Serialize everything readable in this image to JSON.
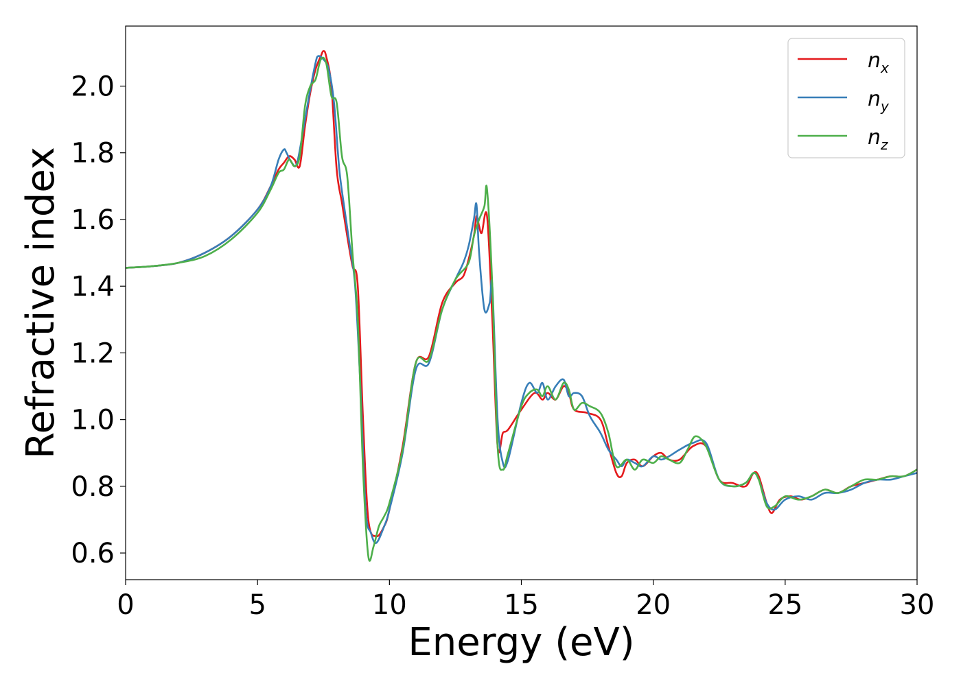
{
  "chart_data": {
    "type": "line",
    "title": "",
    "xlabel": "Energy (eV)",
    "ylabel": "Refractive index",
    "xlim": [
      0,
      30
    ],
    "ylim": [
      0.52,
      2.18
    ],
    "xticks": [
      "0",
      "5",
      "10",
      "15",
      "20",
      "25",
      "30"
    ],
    "yticks": [
      "0.6",
      "0.8",
      "1.0",
      "1.2",
      "1.4",
      "1.6",
      "1.8",
      "2.0"
    ],
    "grid": false,
    "legend_position": "top-right",
    "series": [
      {
        "name": "n_x",
        "legend_base": "n",
        "legend_sub": "x",
        "color": "#e41a1c",
        "x": [
          0,
          1,
          2,
          3,
          4,
          5,
          5.5,
          5.8,
          6.0,
          6.2,
          6.4,
          6.6,
          6.8,
          7.0,
          7.2,
          7.4,
          7.5,
          7.6,
          7.8,
          8.0,
          8.2,
          8.4,
          8.6,
          8.8,
          9.0,
          9.2,
          9.5,
          9.8,
          10.0,
          10.5,
          11.0,
          11.5,
          12.0,
          12.5,
          12.8,
          13.0,
          13.2,
          13.3,
          13.4,
          13.5,
          13.7,
          13.9,
          14.1,
          14.3,
          14.5,
          15.0,
          15.5,
          15.8,
          16.0,
          16.3,
          16.6,
          16.8,
          17.0,
          17.5,
          18.0,
          18.3,
          18.6,
          18.8,
          19.0,
          19.3,
          19.6,
          20.0,
          20.3,
          20.6,
          21.0,
          21.5,
          22.0,
          22.5,
          23.0,
          23.5,
          23.8,
          24.0,
          24.3,
          24.5,
          24.8,
          25.2,
          25.6,
          26.0,
          26.5,
          27.0,
          27.5,
          28.0,
          28.5,
          29.0,
          29.5,
          30.0
        ],
        "y": [
          1.455,
          1.46,
          1.47,
          1.5,
          1.55,
          1.63,
          1.7,
          1.75,
          1.77,
          1.79,
          1.78,
          1.76,
          1.88,
          1.98,
          2.05,
          2.09,
          2.105,
          2.09,
          2.0,
          1.75,
          1.65,
          1.55,
          1.46,
          1.4,
          1.0,
          0.7,
          0.65,
          0.68,
          0.73,
          0.92,
          1.17,
          1.19,
          1.35,
          1.41,
          1.43,
          1.48,
          1.55,
          1.61,
          1.58,
          1.56,
          1.61,
          1.3,
          0.92,
          0.96,
          0.97,
          1.03,
          1.08,
          1.06,
          1.08,
          1.06,
          1.1,
          1.08,
          1.03,
          1.02,
          1.0,
          0.92,
          0.84,
          0.83,
          0.87,
          0.88,
          0.86,
          0.89,
          0.9,
          0.88,
          0.88,
          0.92,
          0.92,
          0.82,
          0.81,
          0.8,
          0.84,
          0.83,
          0.75,
          0.72,
          0.76,
          0.77,
          0.76,
          0.77,
          0.79,
          0.78,
          0.8,
          0.81,
          0.82,
          0.83,
          0.83,
          0.85
        ]
      },
      {
        "name": "n_y",
        "legend_base": "n",
        "legend_sub": "y",
        "color": "#377eb8",
        "x": [
          0,
          1,
          2,
          3,
          4,
          5,
          5.5,
          5.8,
          6.0,
          6.1,
          6.3,
          6.5,
          6.8,
          7.0,
          7.2,
          7.3,
          7.5,
          7.7,
          7.9,
          8.1,
          8.3,
          8.5,
          8.7,
          8.9,
          9.1,
          9.3,
          9.5,
          9.8,
          10.0,
          10.5,
          11.0,
          11.5,
          12.0,
          12.5,
          12.8,
          13.0,
          13.2,
          13.3,
          13.4,
          13.6,
          13.8,
          13.9,
          14.1,
          14.3,
          14.5,
          15.0,
          15.3,
          15.6,
          15.8,
          16.0,
          16.3,
          16.6,
          16.8,
          17.0,
          17.3,
          17.6,
          18.0,
          18.3,
          18.6,
          18.8,
          19.0,
          19.3,
          19.6,
          20.0,
          20.3,
          20.6,
          21.0,
          21.5,
          22.0,
          22.5,
          23.0,
          23.5,
          23.8,
          24.0,
          24.3,
          24.6,
          25.0,
          25.5,
          26.0,
          26.5,
          27.0,
          27.5,
          28.0,
          28.5,
          29.0,
          29.5,
          30.0
        ],
        "y": [
          1.455,
          1.46,
          1.47,
          1.5,
          1.55,
          1.63,
          1.7,
          1.78,
          1.81,
          1.8,
          1.77,
          1.77,
          1.9,
          1.99,
          2.07,
          2.09,
          2.08,
          2.05,
          1.95,
          1.75,
          1.63,
          1.52,
          1.4,
          1.1,
          0.73,
          0.66,
          0.63,
          0.68,
          0.73,
          0.9,
          1.15,
          1.17,
          1.33,
          1.42,
          1.47,
          1.52,
          1.6,
          1.645,
          1.5,
          1.33,
          1.35,
          1.4,
          1.0,
          0.87,
          0.88,
          1.05,
          1.11,
          1.08,
          1.11,
          1.06,
          1.1,
          1.12,
          1.07,
          1.08,
          1.07,
          1.01,
          0.96,
          0.91,
          0.88,
          0.86,
          0.88,
          0.87,
          0.86,
          0.89,
          0.88,
          0.89,
          0.91,
          0.93,
          0.93,
          0.82,
          0.8,
          0.81,
          0.84,
          0.82,
          0.75,
          0.73,
          0.76,
          0.77,
          0.76,
          0.78,
          0.78,
          0.79,
          0.81,
          0.82,
          0.82,
          0.83,
          0.84
        ]
      },
      {
        "name": "n_z",
        "legend_base": "n",
        "legend_sub": "z",
        "color": "#4daf4a",
        "x": [
          0,
          1,
          2,
          3,
          4,
          5,
          5.5,
          5.8,
          6.0,
          6.2,
          6.4,
          6.6,
          6.8,
          7.0,
          7.2,
          7.4,
          7.6,
          7.8,
          8.0,
          8.2,
          8.4,
          8.6,
          8.8,
          9.0,
          9.2,
          9.4,
          9.6,
          9.8,
          10.0,
          10.5,
          11.0,
          11.5,
          12.0,
          12.5,
          13.0,
          13.2,
          13.4,
          13.6,
          13.7,
          13.9,
          14.1,
          14.3,
          14.5,
          15.0,
          15.3,
          15.6,
          15.8,
          16.0,
          16.3,
          16.6,
          16.8,
          17.0,
          17.3,
          17.6,
          18.0,
          18.3,
          18.6,
          19.0,
          19.3,
          19.6,
          20.0,
          20.3,
          20.6,
          21.0,
          21.3,
          21.6,
          22.0,
          22.5,
          23.0,
          23.5,
          23.8,
          24.0,
          24.3,
          24.6,
          25.0,
          25.5,
          26.0,
          26.5,
          27.0,
          27.5,
          28.0,
          28.5,
          29.0,
          29.5,
          30.0
        ],
        "y": [
          1.455,
          1.46,
          1.47,
          1.49,
          1.54,
          1.62,
          1.69,
          1.74,
          1.75,
          1.78,
          1.76,
          1.79,
          1.94,
          2.0,
          2.02,
          2.08,
          2.07,
          1.97,
          1.95,
          1.79,
          1.73,
          1.5,
          1.3,
          0.85,
          0.59,
          0.62,
          0.68,
          0.71,
          0.75,
          0.91,
          1.17,
          1.18,
          1.33,
          1.42,
          1.47,
          1.55,
          1.6,
          1.64,
          1.69,
          1.4,
          0.92,
          0.85,
          0.9,
          1.04,
          1.08,
          1.09,
          1.07,
          1.1,
          1.06,
          1.11,
          1.09,
          1.03,
          1.05,
          1.04,
          1.02,
          0.96,
          0.86,
          0.88,
          0.85,
          0.88,
          0.87,
          0.89,
          0.88,
          0.87,
          0.91,
          0.95,
          0.92,
          0.82,
          0.8,
          0.81,
          0.84,
          0.82,
          0.74,
          0.74,
          0.77,
          0.76,
          0.77,
          0.79,
          0.78,
          0.8,
          0.82,
          0.82,
          0.83,
          0.83,
          0.85
        ]
      }
    ]
  }
}
